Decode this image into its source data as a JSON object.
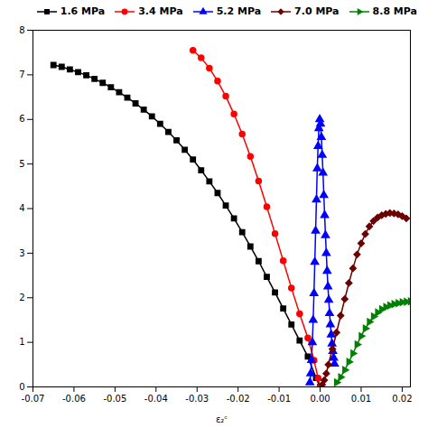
{
  "chart_data": {
    "type": "line",
    "xlabel": "ε₂ᶜ",
    "xlim": [
      -0.07,
      0.022
    ],
    "ylim": [
      0,
      8
    ],
    "xticks": [
      -0.07,
      -0.06,
      -0.05,
      -0.04,
      -0.03,
      -0.02,
      -0.01,
      {
        "value": 0,
        "label": "0.00"
      },
      0.01,
      0.02
    ],
    "yticks": [
      0,
      1,
      2,
      3,
      4,
      5,
      6,
      7,
      8
    ],
    "grid": false,
    "legend": "upper right",
    "series": [
      {
        "name": "1.6 MPa",
        "color": "black",
        "marker": "square",
        "x": [
          -0.065,
          -0.063,
          -0.061,
          -0.059,
          -0.057,
          -0.055,
          -0.053,
          -0.051,
          -0.049,
          -0.047,
          -0.045,
          -0.043,
          -0.041,
          -0.039,
          -0.037,
          -0.035,
          -0.033,
          -0.031,
          -0.029,
          -0.027,
          -0.025,
          -0.023,
          -0.021,
          -0.019,
          -0.017,
          -0.015,
          -0.013,
          -0.011,
          -0.009,
          -0.007,
          -0.005,
          -0.003,
          -0.001,
          0.0
        ],
        "values": [
          7.22,
          7.18,
          7.12,
          7.06,
          6.99,
          6.91,
          6.82,
          6.72,
          6.61,
          6.49,
          6.36,
          6.22,
          6.07,
          5.9,
          5.72,
          5.53,
          5.32,
          5.1,
          4.86,
          4.61,
          4.35,
          4.07,
          3.78,
          3.47,
          3.15,
          2.82,
          2.47,
          2.12,
          1.76,
          1.4,
          1.04,
          0.68,
          0.2,
          0.0
        ]
      },
      {
        "name": "3.4 MPa",
        "color": "red",
        "marker": "circle",
        "x": [
          -0.031,
          -0.029,
          -0.027,
          -0.025,
          -0.023,
          -0.021,
          -0.019,
          -0.017,
          -0.015,
          -0.013,
          -0.011,
          -0.009,
          -0.007,
          -0.005,
          -0.003,
          -0.0015,
          -0.0005,
          0.0
        ],
        "values": [
          7.55,
          7.38,
          7.15,
          6.86,
          6.52,
          6.12,
          5.67,
          5.17,
          4.62,
          4.04,
          3.44,
          2.83,
          2.22,
          1.64,
          1.1,
          0.6,
          0.2,
          0.0
        ]
      },
      {
        "name": "5.2 MPa",
        "color": "blue",
        "marker": "triangle-up",
        "x": [
          -0.0025,
          -0.0023,
          -0.0021,
          -0.0019,
          -0.0017,
          -0.0015,
          -0.0013,
          -0.0011,
          -0.0009,
          -0.0007,
          -0.0005,
          -0.0003,
          -0.0001,
          0.0001,
          0.0003,
          0.0005,
          0.0007,
          0.0009,
          0.0011,
          0.0013,
          0.0015,
          0.0017,
          0.0019,
          0.0021,
          0.0023,
          0.0025,
          0.0027,
          0.0029,
          0.0031,
          0.0033,
          0.0035
        ],
        "values": [
          0.1,
          0.3,
          0.6,
          1.0,
          1.5,
          2.1,
          2.8,
          3.5,
          4.2,
          4.9,
          5.4,
          5.8,
          6.0,
          5.9,
          5.6,
          5.2,
          4.8,
          4.3,
          3.85,
          3.4,
          3.0,
          2.6,
          2.25,
          1.95,
          1.65,
          1.4,
          1.17,
          0.97,
          0.8,
          0.65,
          0.52
        ]
      },
      {
        "name": "7.0 MPa",
        "color": "#6B0000",
        "marker": "diamond",
        "x": [
          0.0005,
          0.001,
          0.0015,
          0.002,
          0.003,
          0.004,
          0.005,
          0.006,
          0.007,
          0.008,
          0.009,
          0.01,
          0.011,
          0.012,
          0.013,
          0.014,
          0.015,
          0.016,
          0.017,
          0.018,
          0.019,
          0.02,
          0.021
        ],
        "values": [
          0.05,
          0.15,
          0.3,
          0.5,
          0.85,
          1.22,
          1.6,
          1.97,
          2.33,
          2.66,
          2.97,
          3.22,
          3.43,
          3.6,
          3.72,
          3.8,
          3.85,
          3.88,
          3.9,
          3.89,
          3.87,
          3.83,
          3.78
        ]
      },
      {
        "name": "8.8 MPa",
        "color": "green",
        "marker": "triangle-right",
        "x": [
          0.004,
          0.005,
          0.006,
          0.007,
          0.008,
          0.009,
          0.01,
          0.011,
          0.012,
          0.013,
          0.014,
          0.015,
          0.016,
          0.017,
          0.018,
          0.019,
          0.02,
          0.021,
          0.022
        ],
        "values": [
          0.1,
          0.22,
          0.38,
          0.56,
          0.75,
          0.95,
          1.14,
          1.31,
          1.46,
          1.58,
          1.67,
          1.74,
          1.79,
          1.83,
          1.86,
          1.88,
          1.9,
          1.91,
          1.92
        ]
      }
    ]
  }
}
